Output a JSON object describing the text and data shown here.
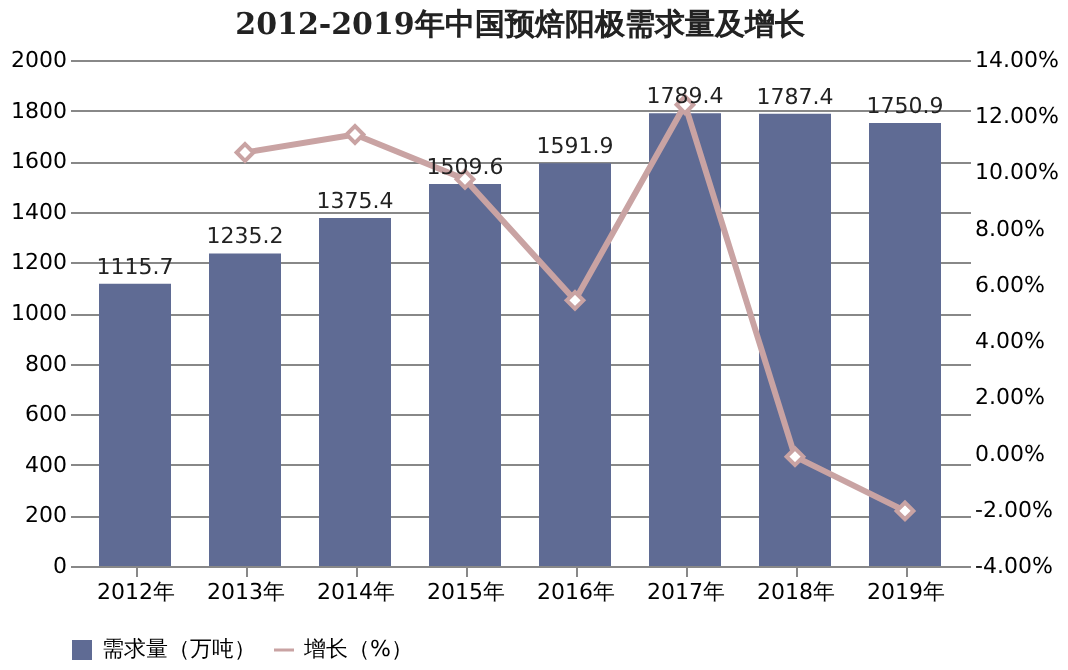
{
  "chart_data": {
    "type": "bar",
    "title": "2012-2019年中国预焙阳极需求量及增长",
    "categories": [
      "2012年",
      "2013年",
      "2014年",
      "2015年",
      "2016年",
      "2017年",
      "2018年",
      "2019年"
    ],
    "series": [
      {
        "name": "需求量（万吨）",
        "color": "#5f6b94",
        "values": [
          1115.7,
          1235.2,
          1375.4,
          1509.6,
          1591.9,
          1789.4,
          1787.4,
          1750.9
        ],
        "data_labels": true
      },
      {
        "name": "增长（%）",
        "type": "line",
        "axis": "y2",
        "color": "#c9a3a3",
        "marker": "diamond",
        "values": [
          null,
          10.71,
          11.35,
          9.76,
          5.45,
          12.41,
          -0.11,
          -2.04
        ]
      }
    ],
    "ylim": [
      0,
      2000
    ],
    "yticks": [
      0,
      200,
      400,
      600,
      800,
      1000,
      1200,
      1400,
      1600,
      1800,
      2000
    ],
    "y2lim": [
      -4,
      14
    ],
    "y2ticks": [
      {
        "value": -4,
        "label": "-4.00%"
      },
      {
        "value": -2,
        "label": "-2.00%"
      },
      {
        "value": 0,
        "label": "0.00%"
      },
      {
        "value": 2,
        "label": "2.00%"
      },
      {
        "value": 4,
        "label": "4.00%"
      },
      {
        "value": 6,
        "label": "6.00%"
      },
      {
        "value": 8,
        "label": "8.00%"
      },
      {
        "value": 10,
        "label": "10.00%"
      },
      {
        "value": 12,
        "label": "12.00%"
      },
      {
        "value": 14,
        "label": "14.00%"
      }
    ],
    "grid": "y",
    "legend": "bottom"
  }
}
